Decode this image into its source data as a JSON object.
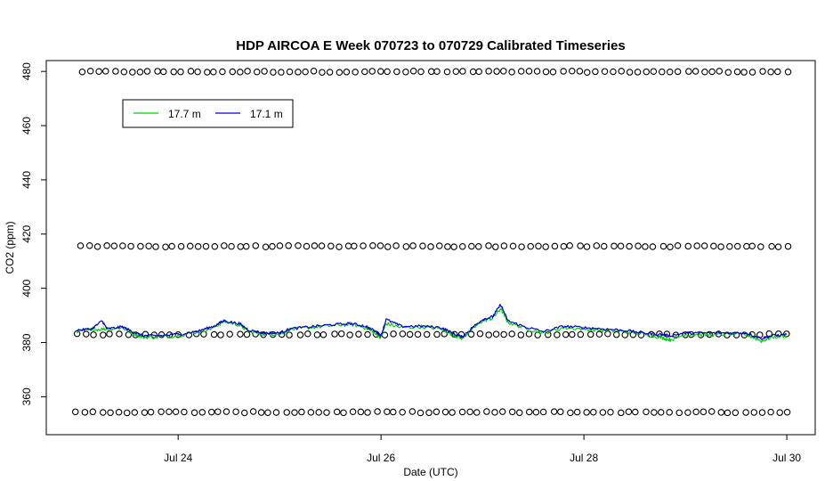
{
  "chart_data": {
    "type": "line",
    "title": "HDP AIRCOA E  Week 070723 to 070729  Calibrated Timeseries",
    "xlabel": "Date (UTC)",
    "ylabel": "CO2 (ppm)",
    "x_ticks": [
      {
        "value": 24,
        "label": "Jul 24"
      },
      {
        "value": 26,
        "label": "Jul 26"
      },
      {
        "value": 28,
        "label": "Jul 28"
      },
      {
        "value": 30,
        "label": "Jul 30"
      }
    ],
    "y_ticks": [
      360,
      380,
      400,
      420,
      440,
      460,
      480
    ],
    "xlim": [
      22.7,
      30.28
    ],
    "ylim": [
      346,
      484
    ],
    "grid": false,
    "legend": {
      "placement": "top-left",
      "entries": [
        {
          "name": "17.7 m",
          "color": "#00cc00"
        },
        {
          "name": "17.1 m",
          "color": "#0000cc"
        }
      ]
    },
    "series": [
      {
        "name": "17.7 m",
        "color": "#00cc00",
        "x_range": [
          23.0,
          30.0
        ],
        "points": [
          [
            23.0,
            384.2
          ],
          [
            23.15,
            384.8
          ],
          [
            23.3,
            385.0
          ],
          [
            23.45,
            385.5
          ],
          [
            23.55,
            383.5
          ],
          [
            23.65,
            382.0
          ],
          [
            23.8,
            382.0
          ],
          [
            24.0,
            382.6
          ],
          [
            24.2,
            384.0
          ],
          [
            24.35,
            385.5
          ],
          [
            24.45,
            387.8
          ],
          [
            24.6,
            386.5
          ],
          [
            24.7,
            384.0
          ],
          [
            24.85,
            383.0
          ],
          [
            25.0,
            383.2
          ],
          [
            25.1,
            384.8
          ],
          [
            25.3,
            385.5
          ],
          [
            25.5,
            386.2
          ],
          [
            25.7,
            386.8
          ],
          [
            25.85,
            385.5
          ],
          [
            25.95,
            383.0
          ],
          [
            26.0,
            382.0
          ],
          [
            26.05,
            387.0
          ],
          [
            26.2,
            385.5
          ],
          [
            26.4,
            385.8
          ],
          [
            26.6,
            385.0
          ],
          [
            26.7,
            383.0
          ],
          [
            26.8,
            381.5
          ],
          [
            26.9,
            385.0
          ],
          [
            27.0,
            388.0
          ],
          [
            27.1,
            389.0
          ],
          [
            27.18,
            392.5
          ],
          [
            27.25,
            387.5
          ],
          [
            27.4,
            385.5
          ],
          [
            27.6,
            383.5
          ],
          [
            27.8,
            385.5
          ],
          [
            28.0,
            385.0
          ],
          [
            28.2,
            384.5
          ],
          [
            28.4,
            384.0
          ],
          [
            28.6,
            383.0
          ],
          [
            28.75,
            382.0
          ],
          [
            28.85,
            381.0
          ],
          [
            29.0,
            383.0
          ],
          [
            29.2,
            382.8
          ],
          [
            29.4,
            383.0
          ],
          [
            29.6,
            383.0
          ],
          [
            29.75,
            380.5
          ],
          [
            29.85,
            382.0
          ],
          [
            30.0,
            382.5
          ]
        ]
      },
      {
        "name": "17.1 m",
        "color": "#0000cc",
        "x_range": [
          23.0,
          30.0
        ],
        "points": [
          [
            23.0,
            384.5
          ],
          [
            23.15,
            385.0
          ],
          [
            23.25,
            388.0
          ],
          [
            23.3,
            385.0
          ],
          [
            23.45,
            385.8
          ],
          [
            23.55,
            384.0
          ],
          [
            23.65,
            382.5
          ],
          [
            23.8,
            382.5
          ],
          [
            24.0,
            383.0
          ],
          [
            24.2,
            384.2
          ],
          [
            24.35,
            386.0
          ],
          [
            24.45,
            388.0
          ],
          [
            24.6,
            387.0
          ],
          [
            24.7,
            384.5
          ],
          [
            24.85,
            383.5
          ],
          [
            25.0,
            383.5
          ],
          [
            25.1,
            385.0
          ],
          [
            25.3,
            385.8
          ],
          [
            25.5,
            386.5
          ],
          [
            25.7,
            387.0
          ],
          [
            25.85,
            386.0
          ],
          [
            25.95,
            384.0
          ],
          [
            26.0,
            382.5
          ],
          [
            26.05,
            388.5
          ],
          [
            26.2,
            386.0
          ],
          [
            26.4,
            386.0
          ],
          [
            26.6,
            385.5
          ],
          [
            26.7,
            383.5
          ],
          [
            26.8,
            382.0
          ],
          [
            26.9,
            385.5
          ],
          [
            27.0,
            388.5
          ],
          [
            27.1,
            389.5
          ],
          [
            27.18,
            394.0
          ],
          [
            27.25,
            388.0
          ],
          [
            27.4,
            386.0
          ],
          [
            27.6,
            384.0
          ],
          [
            27.8,
            386.0
          ],
          [
            28.0,
            385.5
          ],
          [
            28.2,
            385.0
          ],
          [
            28.4,
            384.5
          ],
          [
            28.6,
            383.5
          ],
          [
            28.75,
            383.0
          ],
          [
            28.85,
            382.5
          ],
          [
            29.0,
            383.5
          ],
          [
            29.2,
            383.5
          ],
          [
            29.4,
            383.5
          ],
          [
            29.6,
            383.5
          ],
          [
            29.75,
            381.5
          ],
          [
            29.85,
            382.5
          ],
          [
            30.0,
            383.0
          ]
        ]
      }
    ],
    "reference_points": [
      {
        "level": 479.9,
        "x_range": [
          23.05,
          30.0
        ],
        "count": 86
      },
      {
        "level": 415.5,
        "x_range": [
          23.05,
          30.0
        ],
        "count": 86
      },
      {
        "level": 383.0,
        "x_range": [
          23.0,
          30.0
        ],
        "count": 84
      },
      {
        "level": 354.3,
        "x_range": [
          23.0,
          30.0
        ],
        "count": 86
      }
    ]
  }
}
